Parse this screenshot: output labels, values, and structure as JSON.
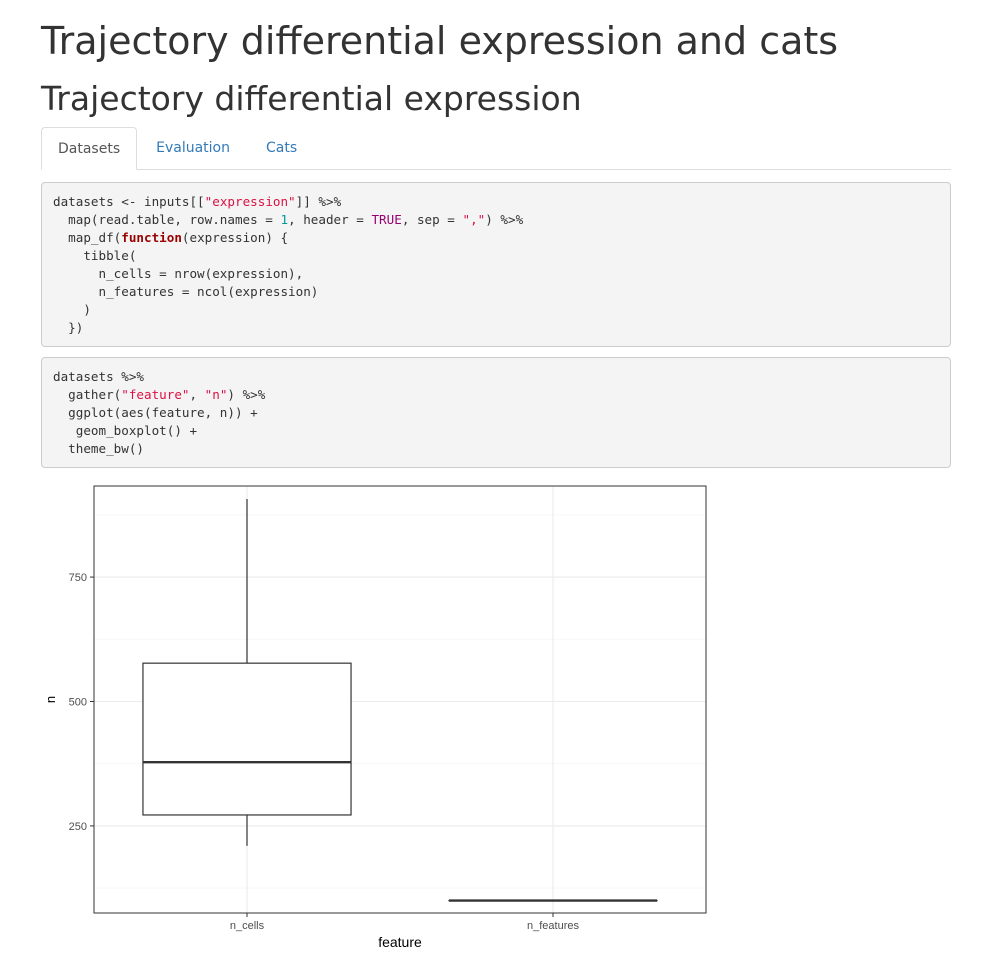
{
  "header": {
    "title": "Trajectory differential expression and cats",
    "subtitle": "Trajectory differential expression"
  },
  "tabs": [
    {
      "label": "Datasets",
      "active": true
    },
    {
      "label": "Evaluation",
      "active": false
    },
    {
      "label": "Cats",
      "active": false
    }
  ],
  "code_blocks": [
    {
      "lines": [
        [
          {
            "t": "datasets <- inputs[["
          },
          {
            "t": "\"expression\"",
            "c": "s"
          },
          {
            "t": "]] %>%"
          }
        ],
        [
          {
            "t": "  map(read.table, row.names = "
          },
          {
            "t": "1",
            "c": "n"
          },
          {
            "t": ", header = "
          },
          {
            "t": "TRUE",
            "c": "c"
          },
          {
            "t": ", sep = "
          },
          {
            "t": "\",\"",
            "c": "s"
          },
          {
            "t": ") %>%"
          }
        ],
        [
          {
            "t": "  map_df("
          },
          {
            "t": "function",
            "c": "k"
          },
          {
            "t": "(expression) {"
          }
        ],
        [
          {
            "t": "    tibble("
          }
        ],
        [
          {
            "t": "      n_cells = nrow(expression),"
          }
        ],
        [
          {
            "t": "      n_features = ncol(expression)"
          }
        ],
        [
          {
            "t": "    )"
          }
        ],
        [
          {
            "t": "  })"
          }
        ]
      ]
    },
    {
      "lines": [
        [
          {
            "t": "datasets %>%"
          }
        ],
        [
          {
            "t": "  gather("
          },
          {
            "t": "\"feature\"",
            "c": "s"
          },
          {
            "t": ", "
          },
          {
            "t": "\"n\"",
            "c": "s"
          },
          {
            "t": ") %>%"
          }
        ],
        [
          {
            "t": "  ggplot(aes(feature, n)) +"
          }
        ],
        [
          {
            "t": "   geom_boxplot() +"
          }
        ],
        [
          {
            "t": "  theme_bw()"
          }
        ]
      ]
    }
  ],
  "chart_data": {
    "type": "boxplot",
    "title": "",
    "xlabel": "feature",
    "ylabel": "n",
    "categories": [
      "n_cells",
      "n_features"
    ],
    "boxes": [
      {
        "category": "n_cells",
        "min": 210,
        "q1": 272,
        "median": 378,
        "q3": 577,
        "max": 907
      },
      {
        "category": "n_features",
        "min": 100,
        "q1": 100,
        "median": 100,
        "q3": 100,
        "max": 100
      }
    ],
    "ylim": [
      75,
      933
    ],
    "yticks": [
      250,
      500,
      750
    ],
    "ytick_labels": [
      "250",
      "500",
      "750"
    ],
    "grid": true,
    "theme": "bw",
    "colors": {
      "box_fill": "#ffffff",
      "box_stroke": "#333333",
      "grid_major": "#ebebeb",
      "grid_minor": "#f5f5f5",
      "panel_border": "#333333"
    }
  }
}
